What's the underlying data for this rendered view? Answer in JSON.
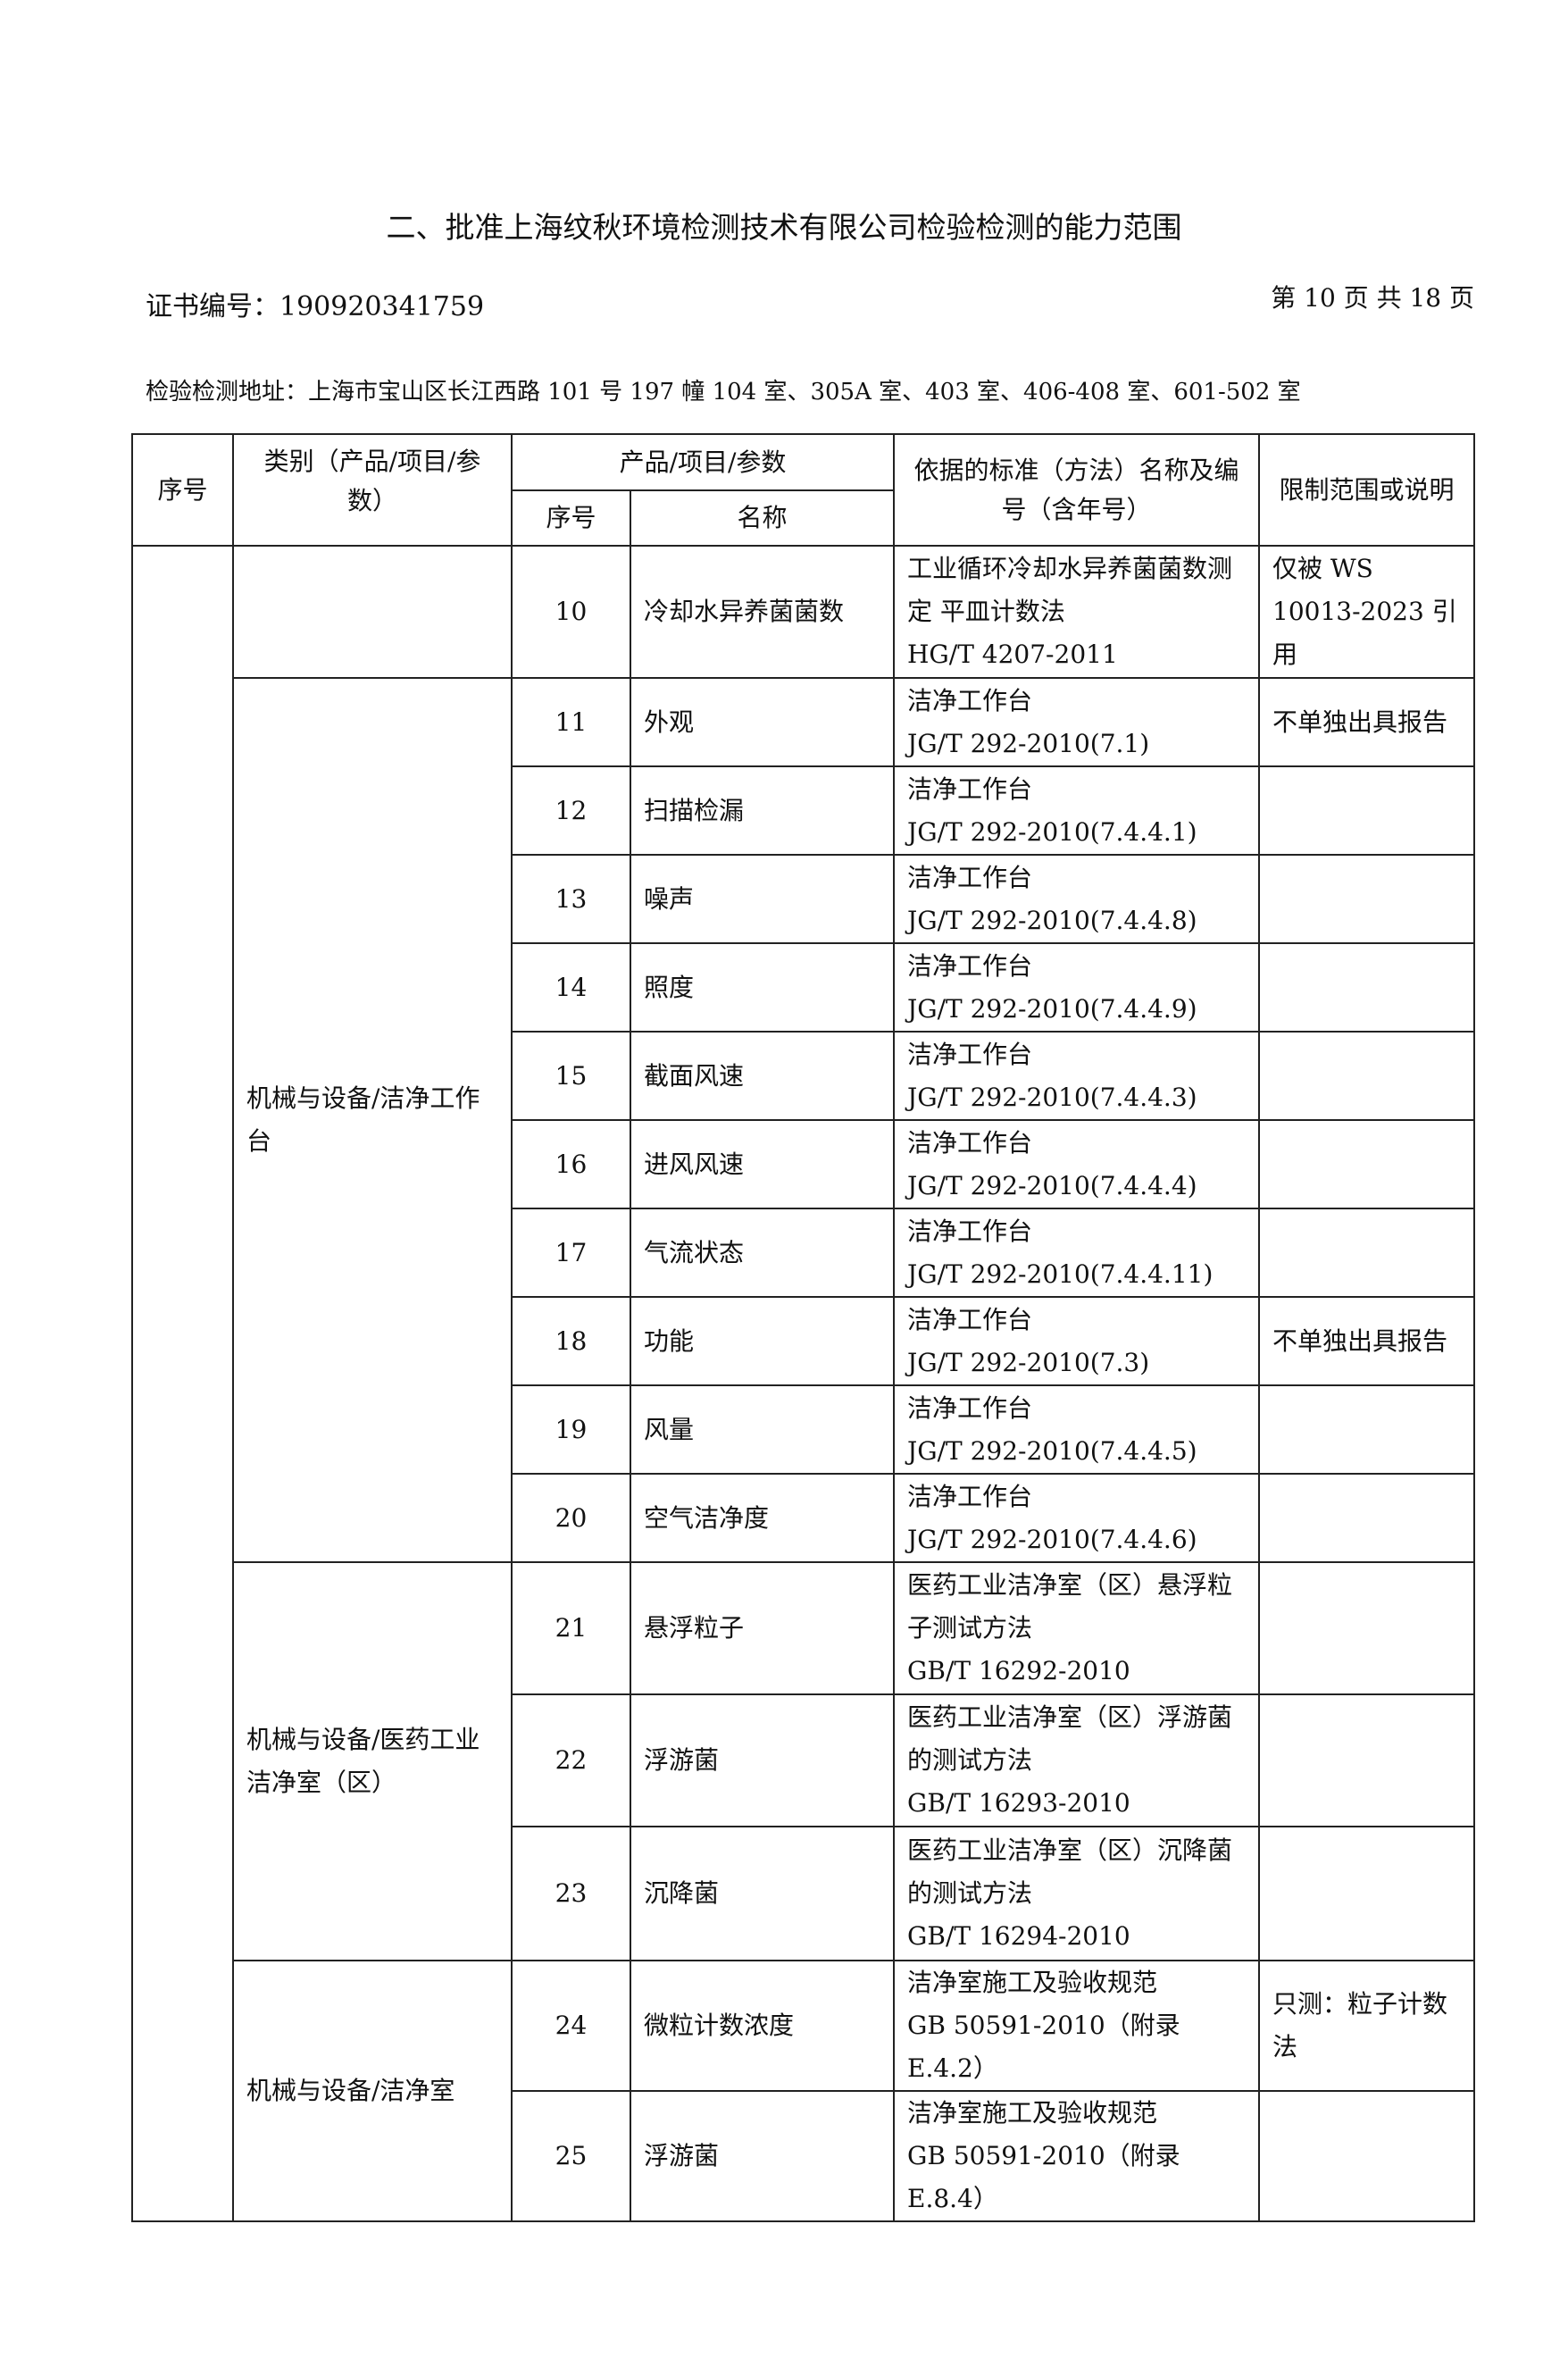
{
  "title": "二、批准上海纹秋环境检测技术有限公司检验检测的能力范围",
  "certificate": "证书编号：190920341759",
  "page_info": "第 10 页 共 18 页",
  "address": "检验检测地址：上海市宝山区长江西路 101 号 197 幢 104 室、305A 室、403 室、406-408 室、601-502 室",
  "table": {
    "headers": {
      "seq": "序号",
      "category": "类别（产品/项目/参数）",
      "product": "产品/项目/参数",
      "sub_seq": "序号",
      "sub_name": "名称",
      "standard": "依据的标准（方法）名称及编号（含年号）",
      "limit": "限制范围或说明"
    },
    "groups": [
      {
        "category": "",
        "rows": [
          {
            "no": "10",
            "name": "冷却水异养菌菌数",
            "standard": [
              "工业循环冷却水异养菌菌数测定 平皿计数法",
              "HG/T 4207-2011"
            ],
            "limit": "仅被 WS 10013-2023 引用"
          }
        ]
      },
      {
        "category": "机械与设备/洁净工作台",
        "rows": [
          {
            "no": "11",
            "name": "外观",
            "standard": [
              "洁净工作台",
              "JG/T 292-2010(7.1)"
            ],
            "limit": "不单独出具报告"
          },
          {
            "no": "12",
            "name": "扫描检漏",
            "standard": [
              "洁净工作台",
              "JG/T 292-2010(7.4.4.1)"
            ],
            "limit": ""
          },
          {
            "no": "13",
            "name": "噪声",
            "standard": [
              "洁净工作台",
              "JG/T 292-2010(7.4.4.8)"
            ],
            "limit": ""
          },
          {
            "no": "14",
            "name": "照度",
            "standard": [
              "洁净工作台",
              "JG/T 292-2010(7.4.4.9)"
            ],
            "limit": ""
          },
          {
            "no": "15",
            "name": "截面风速",
            "standard": [
              "洁净工作台",
              "JG/T 292-2010(7.4.4.3)"
            ],
            "limit": ""
          },
          {
            "no": "16",
            "name": "进风风速",
            "standard": [
              "洁净工作台",
              "JG/T 292-2010(7.4.4.4)"
            ],
            "limit": ""
          },
          {
            "no": "17",
            "name": "气流状态",
            "standard": [
              "洁净工作台",
              "JG/T 292-2010(7.4.4.11)"
            ],
            "limit": ""
          },
          {
            "no": "18",
            "name": "功能",
            "standard": [
              "洁净工作台",
              "JG/T 292-2010(7.3)"
            ],
            "limit": "不单独出具报告"
          },
          {
            "no": "19",
            "name": "风量",
            "standard": [
              "洁净工作台",
              "JG/T 292-2010(7.4.4.5)"
            ],
            "limit": ""
          },
          {
            "no": "20",
            "name": "空气洁净度",
            "standard": [
              "洁净工作台",
              "JG/T 292-2010(7.4.4.6)"
            ],
            "limit": ""
          }
        ]
      },
      {
        "category": "机械与设备/医药工业洁净室（区）",
        "rows": [
          {
            "no": "21",
            "name": "悬浮粒子",
            "standard": [
              "医药工业洁净室（区）悬浮粒子测试方法",
              "GB/T 16292-2010"
            ],
            "limit": ""
          },
          {
            "no": "22",
            "name": "浮游菌",
            "standard": [
              "医药工业洁净室（区）浮游菌的测试方法",
              "GB/T 16293-2010"
            ],
            "limit": ""
          },
          {
            "no": "23",
            "name": "沉降菌",
            "standard": [
              "医药工业洁净室（区）沉降菌的测试方法",
              "GB/T 16294-2010"
            ],
            "limit": ""
          }
        ]
      },
      {
        "category": "机械与设备/洁净室",
        "rows": [
          {
            "no": "24",
            "name": "微粒计数浓度",
            "standard": [
              "洁净室施工及验收规范",
              "GB 50591-2010（附录 E.4.2）"
            ],
            "limit": "只测：粒子计数法"
          },
          {
            "no": "25",
            "name": "浮游菌",
            "standard": [
              "洁净室施工及验收规范",
              "GB 50591-2010（附录 E.8.4）"
            ],
            "limit": ""
          }
        ]
      }
    ]
  }
}
